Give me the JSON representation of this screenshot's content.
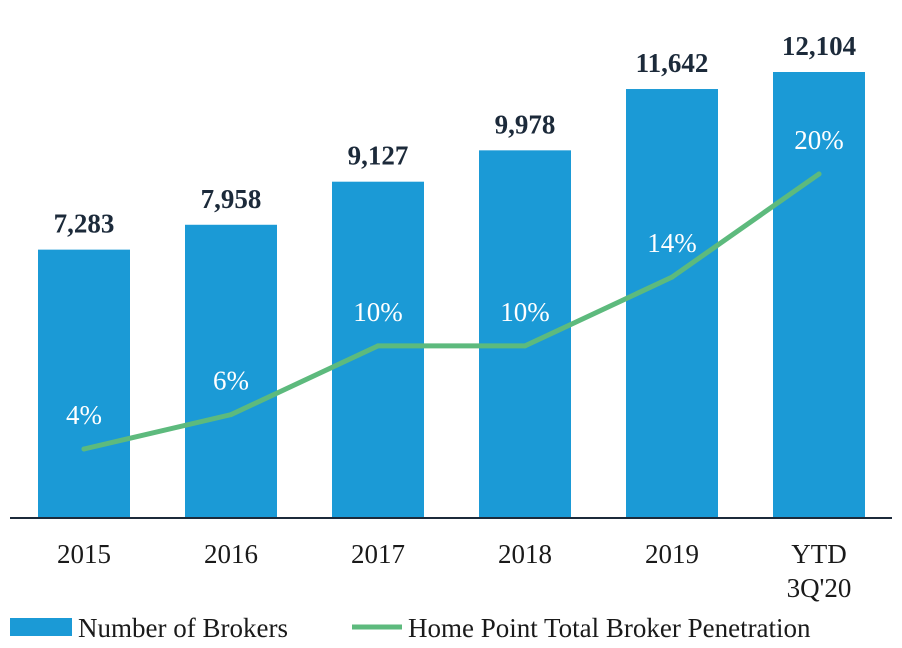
{
  "chart_data": {
    "type": "bar",
    "categories": [
      [
        "2015"
      ],
      [
        "2016"
      ],
      [
        "2017"
      ],
      [
        "2018"
      ],
      [
        "2019"
      ],
      [
        "YTD",
        "3Q'20"
      ]
    ],
    "series": [
      {
        "name": "Number of Brokers",
        "kind": "bar",
        "values": [
          7283,
          7958,
          9127,
          9978,
          11642,
          12104
        ],
        "labels": [
          "7,283",
          "7,958",
          "9,127",
          "9,978",
          "11,642",
          "12,104"
        ],
        "color": "#1b9ad6"
      },
      {
        "name": "Home Point Total Broker Penetration",
        "kind": "line",
        "values": [
          4,
          6,
          10,
          10,
          14,
          20
        ],
        "labels": [
          "4%",
          "6%",
          "10%",
          "10%",
          "14%",
          "20%"
        ],
        "unit": "%",
        "color": "#5dba7d"
      }
    ],
    "legend_position": "bottom",
    "grid": false
  }
}
